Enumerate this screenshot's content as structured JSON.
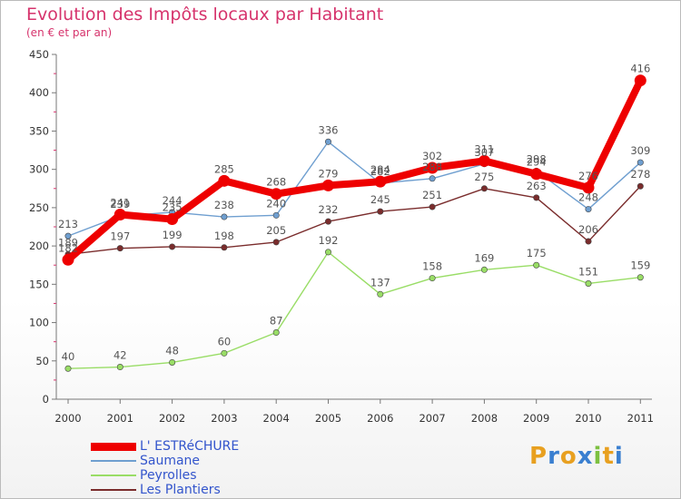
{
  "chart_data": {
    "type": "line",
    "title": "Evolution des Impôts locaux par Habitant",
    "subtitle": "(en € et par an)",
    "categories": [
      "2000",
      "2001",
      "2002",
      "2003",
      "2004",
      "2005",
      "2006",
      "2007",
      "2008",
      "2009",
      "2010",
      "2011"
    ],
    "ylim": [
      0,
      450
    ],
    "yticks": [
      0,
      50,
      100,
      150,
      200,
      250,
      300,
      350,
      400,
      450
    ],
    "grid": false,
    "legend_position": "bottom-left",
    "series": [
      {
        "name": "L' ESTRéCHURE",
        "color": "#ee0000",
        "values": [
          182,
          241,
          235,
          285,
          268,
          279,
          284,
          302,
          311,
          294,
          276,
          416
        ]
      },
      {
        "name": "Saumane",
        "color": "#6f9fd0",
        "values": [
          213,
          239,
          244,
          238,
          240,
          336,
          282,
          288,
          307,
          298,
          248,
          309
        ]
      },
      {
        "name": "Peyrolles",
        "color": "#99dd66",
        "values": [
          40,
          42,
          48,
          60,
          87,
          192,
          137,
          158,
          169,
          175,
          151,
          159
        ]
      },
      {
        "name": "Les Plantiers",
        "color": "#7a2c2c",
        "values": [
          189,
          197,
          199,
          198,
          205,
          232,
          245,
          251,
          275,
          263,
          206,
          278
        ]
      }
    ]
  },
  "logo": {
    "text": "Proxiti",
    "letters": [
      {
        "ch": "P",
        "color": "#e8a020"
      },
      {
        "ch": "r",
        "color": "#3a7fd0"
      },
      {
        "ch": "o",
        "color": "#e8a020"
      },
      {
        "ch": "x",
        "color": "#3a7fd0"
      },
      {
        "ch": "i",
        "color": "#7cc040"
      },
      {
        "ch": "t",
        "color": "#e8a020"
      },
      {
        "ch": "i",
        "color": "#3a7fd0"
      }
    ]
  }
}
